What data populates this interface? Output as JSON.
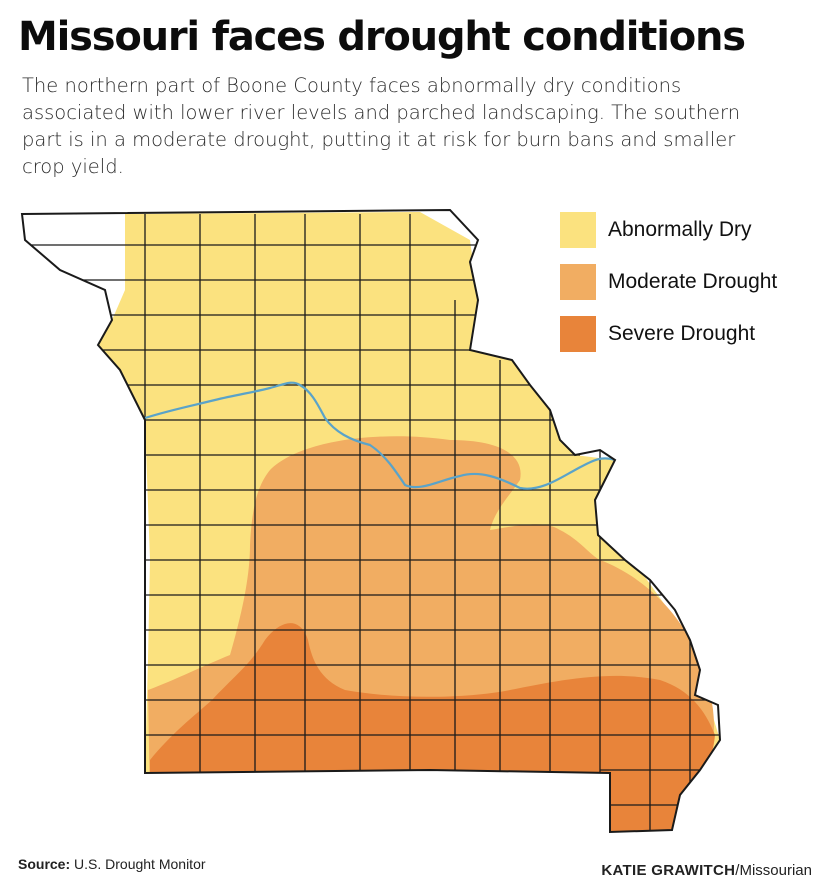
{
  "header": {
    "title": "Missouri faces drought conditions",
    "subtitle": "The northern part of Boone County faces abnormally dry conditions associated with lower river levels and parched landscaping. The southern part is in a moderate drought, putting it at risk for burn bans and smaller crop yield."
  },
  "legend": {
    "items": [
      {
        "label": "Abnormally Dry",
        "color": "#fbe27f"
      },
      {
        "label": "Moderate Drought",
        "color": "#f1ad62"
      },
      {
        "label": "Severe Drought",
        "color": "#e8843a"
      }
    ]
  },
  "map": {
    "region": "Missouri",
    "unit": "counties",
    "river_color": "#5aa3c9",
    "border_color": "#1a1a1a",
    "no_drought_color": "#ffffff"
  },
  "footer": {
    "source_label": "Source:",
    "source_value": "U.S. Drought Monitor",
    "credit_name": "KATIE GRAWITCH",
    "credit_org": "/Missourian"
  }
}
